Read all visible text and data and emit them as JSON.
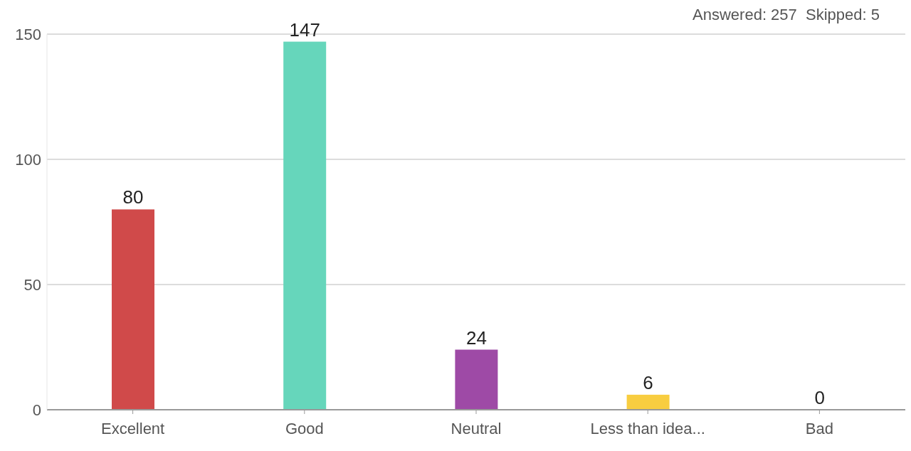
{
  "chart_data": {
    "type": "bar",
    "categories": [
      "Excellent",
      "Good",
      "Neutral",
      "Less than idea...",
      "Bad"
    ],
    "values": [
      80,
      147,
      24,
      6,
      0
    ],
    "colors": [
      "#d04a4a",
      "#66d6bb",
      "#9e4aa6",
      "#f8cd40",
      "#2d9fdb"
    ],
    "ylim": [
      0,
      150
    ],
    "yticks": [
      0,
      50,
      100,
      150
    ],
    "grid": "y",
    "data_labels": true,
    "annotations": [
      "Answered: 257  Skipped: 5"
    ]
  }
}
